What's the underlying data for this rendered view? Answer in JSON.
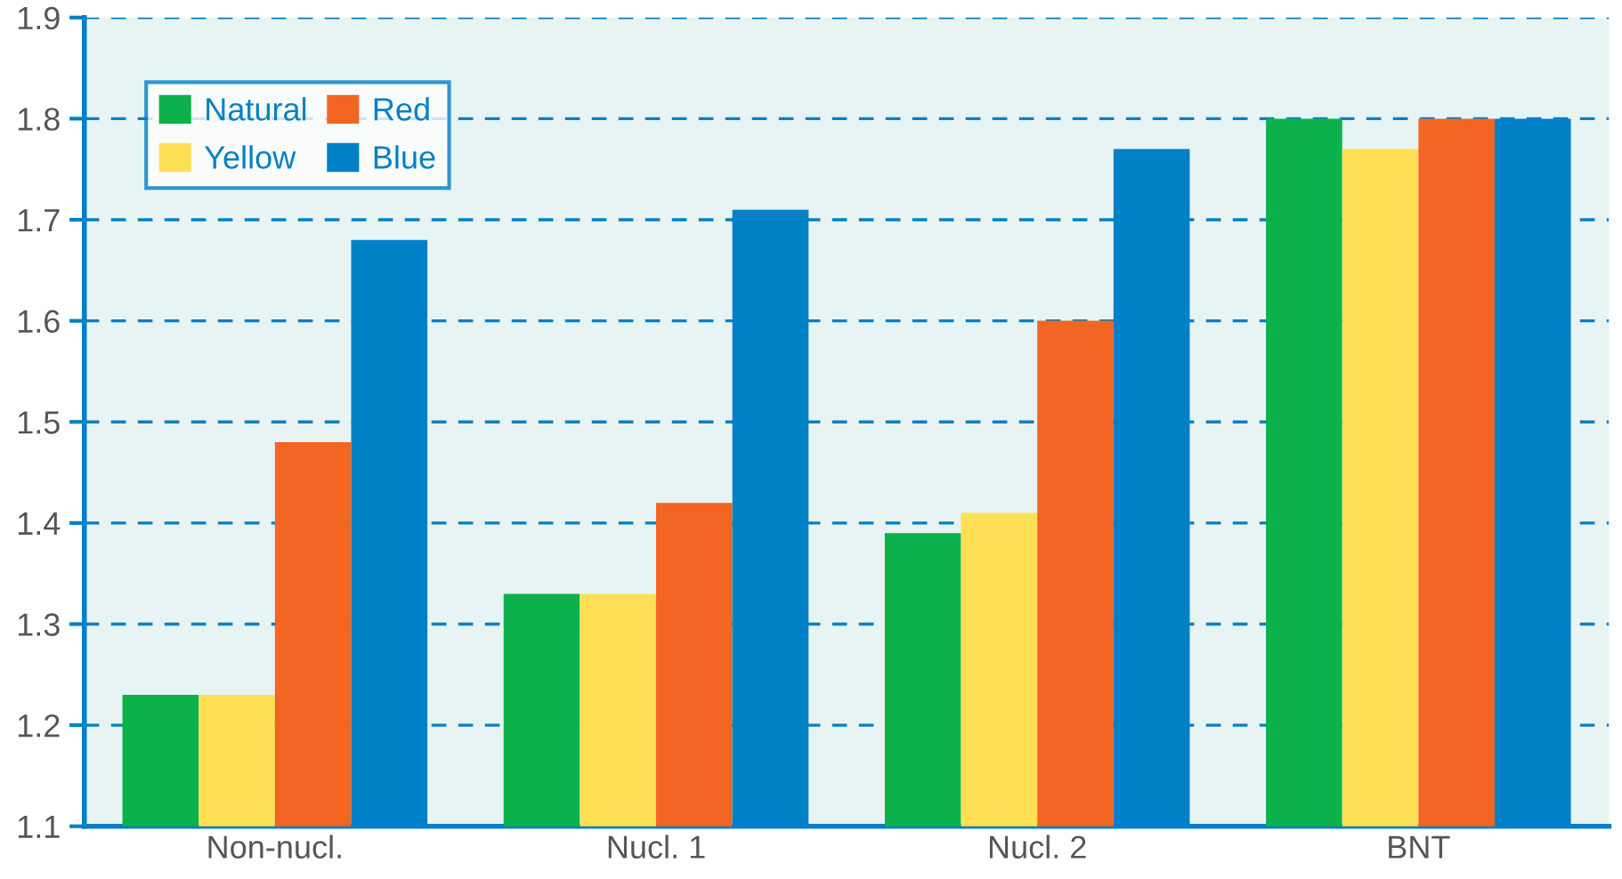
{
  "chart_data": {
    "type": "bar",
    "categories": [
      "Non-nucl.",
      "Nucl. 1",
      "Nucl. 2",
      "BNT"
    ],
    "series": [
      {
        "name": "Natural",
        "color": "#0db14b",
        "values": [
          1.23,
          1.33,
          1.39,
          1.8
        ]
      },
      {
        "name": "Yellow",
        "color": "#ffe055",
        "values": [
          1.23,
          1.33,
          1.41,
          1.77
        ]
      },
      {
        "name": "Red",
        "color": "#f26522",
        "values": [
          1.48,
          1.42,
          1.6,
          1.8
        ]
      },
      {
        "name": "Blue",
        "color": "#0080c6",
        "values": [
          1.68,
          1.71,
          1.77,
          1.8
        ]
      }
    ],
    "ylim": [
      1.1,
      1.9
    ],
    "yticks": [
      1.1,
      1.2,
      1.3,
      1.4,
      1.5,
      1.6,
      1.7,
      1.8,
      1.9
    ],
    "grid": "y",
    "line_style": "dashed",
    "legend": "top left"
  }
}
